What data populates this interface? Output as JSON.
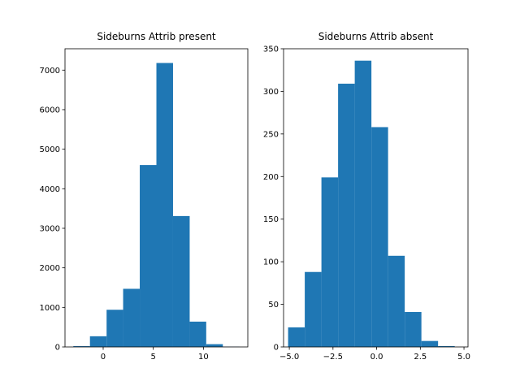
{
  "chart_data": [
    {
      "type": "histogram",
      "title": "Sideburns Attrib present",
      "color": "#1f77b4",
      "bins": [
        -2.98,
        -1.32,
        0.34,
        1.99,
        3.65,
        5.31,
        6.97,
        8.63,
        10.28,
        11.94,
        13.6
      ],
      "values": [
        20,
        270,
        940,
        1470,
        4600,
        7180,
        3310,
        640,
        70,
        5
      ],
      "xlim": [
        -3.81,
        14.43
      ],
      "xticks": [
        0,
        5,
        10
      ],
      "ylim": [
        0,
        7540
      ],
      "yticks": [
        0,
        1000,
        2000,
        3000,
        4000,
        5000,
        6000,
        7000
      ]
    },
    {
      "type": "histogram",
      "title": "Sideburns Attrib absent",
      "color": "#1f77b4",
      "bins": [
        -5.07,
        -4.116,
        -3.162,
        -2.208,
        -1.254,
        -0.3,
        0.654,
        1.608,
        2.562,
        3.516,
        4.47
      ],
      "values": [
        23,
        88,
        199,
        309,
        336,
        258,
        107,
        41,
        7,
        1
      ],
      "xlim": [
        -5.33,
        5.23
      ],
      "xticks": [
        {
          "value": -5,
          "label": "−5.0"
        },
        {
          "value": -2.5,
          "label": "−2.5"
        },
        {
          "value": 0,
          "label": "0.0"
        },
        {
          "value": 2.5,
          "label": "2.5"
        },
        {
          "value": 5,
          "label": "5.0"
        }
      ],
      "ylim": [
        0,
        350
      ],
      "yticks": [
        0,
        50,
        100,
        150,
        200,
        250,
        300,
        350
      ]
    }
  ]
}
